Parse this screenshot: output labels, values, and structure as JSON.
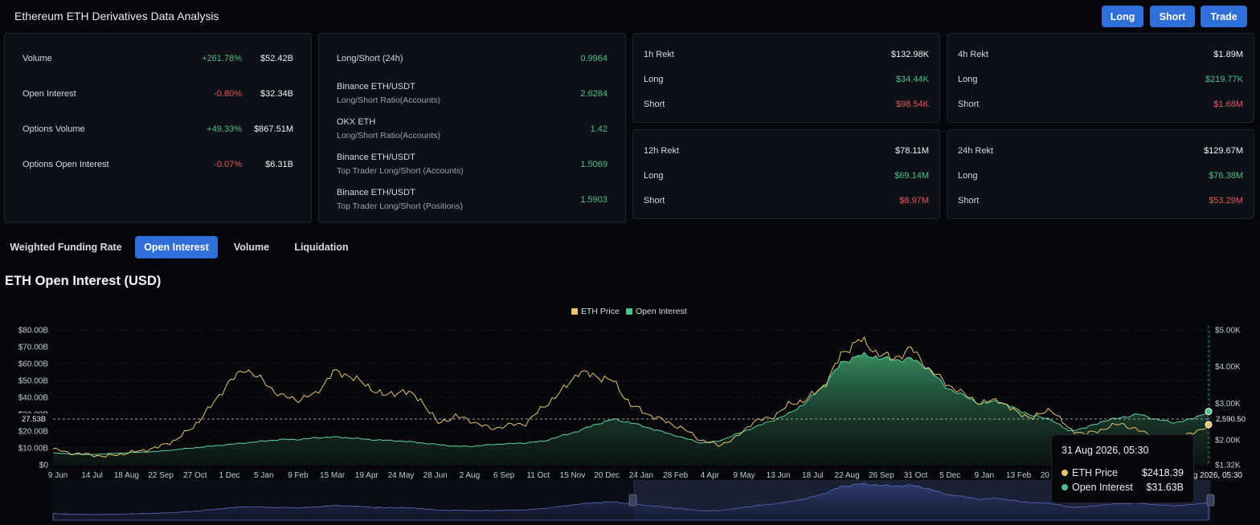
{
  "header": {
    "title": "Ethereum ETH Derivatives Data Analysis",
    "buttons": {
      "long": "Long",
      "short": "Short",
      "trade": "Trade"
    }
  },
  "overview": [
    {
      "label": "Volume",
      "change": "+261.78%",
      "change_dir": "up",
      "value": "$52.42B"
    },
    {
      "label": "Open Interest",
      "change": "-0.80%",
      "change_dir": "down",
      "value": "$32.34B"
    },
    {
      "label": "Options Volume",
      "change": "+49.33%",
      "change_dir": "up",
      "value": "$867.51M"
    },
    {
      "label": "Options Open Interest",
      "change": "-0.07%",
      "change_dir": "down",
      "value": "$6.31B"
    }
  ],
  "long_short": [
    {
      "label": "Long/Short (24h)",
      "sub": "",
      "value": "0.9964"
    },
    {
      "label": "Binance ETH/USDT",
      "sub": "Long/Short Ratio(Accounts)",
      "value": "2.6284"
    },
    {
      "label": "OKX ETH",
      "sub": "Long/Short Ratio(Accounts)",
      "value": "1.42"
    },
    {
      "label": "Binance ETH/USDT",
      "sub": "Top Trader Long/Short (Accounts)",
      "value": "1.5069"
    },
    {
      "label": "Binance ETH/USDT",
      "sub": "Top Trader Long/Short (Positions)",
      "value": "1.5903"
    }
  ],
  "rekt": [
    {
      "title": "1h Rekt",
      "total": "$132.98K",
      "long_label": "Long",
      "long": "$34.44K",
      "short_label": "Short",
      "short": "$98.54K"
    },
    {
      "title": "4h Rekt",
      "total": "$1.89M",
      "long_label": "Long",
      "long": "$219.77K",
      "short_label": "Short",
      "short": "$1.68M"
    },
    {
      "title": "12h Rekt",
      "total": "$78.11M",
      "long_label": "Long",
      "long": "$69.14M",
      "short_label": "Short",
      "short": "$8.97M"
    },
    {
      "title": "24h Rekt",
      "total": "$129.67M",
      "long_label": "Long",
      "long": "$76.38M",
      "short_label": "Short",
      "short": "$53.29M"
    }
  ],
  "tabs": [
    {
      "label": "Weighted Funding Rate",
      "active": false
    },
    {
      "label": "Open Interest",
      "active": true
    },
    {
      "label": "Volume",
      "active": false
    },
    {
      "label": "Liquidation",
      "active": false
    }
  ],
  "chart_title": "ETH Open Interest (USD)",
  "colors": {
    "accent": "#2f6fd9",
    "price": "#e9c46a",
    "open_interest": "#4fbf8b",
    "up": "#4fbf8b",
    "down": "#e05a5a"
  },
  "chart_data": {
    "type": "line",
    "title": "ETH Open Interest (USD)",
    "legend_position": "top-center",
    "series": [
      {
        "name": "ETH Price",
        "axis": "right",
        "color": "#e9c46a",
        "values": [
          1750,
          1640,
          1600,
          1550,
          1620,
          1700,
          1800,
          2000,
          2350,
          2900,
          3550,
          3950,
          3600,
          3200,
          3100,
          3250,
          3850,
          3750,
          3450,
          3200,
          3350,
          3100,
          2450,
          2650,
          2500,
          2300,
          2400,
          2450,
          2900,
          3300,
          3850,
          3750,
          3600,
          2950,
          2700,
          2500,
          2300,
          2000,
          1850,
          2050,
          2500,
          2600,
          2950,
          3100,
          3450,
          4300,
          4750,
          4400,
          4200,
          4500,
          3950,
          3550,
          3250,
          3000,
          3100,
          2750,
          2600,
          2850,
          2300,
          2150,
          2300,
          2450,
          2250,
          2100,
          2050,
          2150,
          2418
        ]
      },
      {
        "name": "Open Interest",
        "axis": "left",
        "color": "#4fbf8b",
        "fill": "area",
        "values": [
          7,
          6.5,
          6,
          6.5,
          7,
          7.5,
          8,
          9,
          10,
          11,
          12,
          13,
          14,
          15,
          15,
          16,
          16.5,
          16,
          15,
          14.5,
          14,
          13,
          12,
          11,
          11,
          12,
          12.5,
          13,
          14,
          17,
          20,
          24,
          27,
          25,
          22,
          19,
          16,
          13,
          14,
          18,
          22,
          26,
          30,
          37,
          47,
          60,
          65,
          64,
          62,
          63,
          57,
          46,
          41,
          36,
          38,
          33,
          29,
          27,
          20,
          22,
          26,
          28,
          30,
          27,
          25,
          27,
          31.63
        ]
      }
    ],
    "y_left": {
      "ticks": [
        "$0",
        "$10.00B",
        "$20.00B",
        "$30.00B",
        "$40.00B",
        "$50.00B",
        "$60.00B",
        "$70.00B",
        "$80.00B"
      ],
      "range": [
        0,
        80
      ],
      "unit": "B USD"
    },
    "y_right": {
      "ticks": [
        "$1.32K",
        "$2.00K",
        "$3.00K",
        "$4.00K",
        "$5.00K"
      ],
      "range": [
        1320,
        5000
      ]
    },
    "x_ticks": [
      "9 Jun",
      "14 Jul",
      "18 Aug",
      "22 Sep",
      "27 Oct",
      "1 Dec",
      "5 Jan",
      "9 Feb",
      "15 Mar",
      "19 Apr",
      "24 May",
      "28 Jun",
      "2 Aug",
      "6 Sep",
      "11 Oct",
      "15 Nov",
      "20 Dec",
      "24 Jan",
      "28 Feb",
      "4 Apr",
      "9 May",
      "13 Jun",
      "18 Jul",
      "22 Aug",
      "26 Sep",
      "31 Oct",
      "5 Dec",
      "9 Jan",
      "13 Feb",
      "20 Mar"
    ],
    "x_last_label": "31 Aug 2026, 05:30",
    "crosshair": {
      "y_left_label": "27.53B",
      "y_right_label": "2,590.50"
    },
    "grid": true
  },
  "tooltip": {
    "date": "31 Aug 2026, 05:30",
    "rows": [
      {
        "label": "ETH Price",
        "value": "$2418.39",
        "color": "#e9c46a"
      },
      {
        "label": "Open Interest",
        "value": "$31.63B",
        "color": "#4fbf8b"
      }
    ]
  }
}
